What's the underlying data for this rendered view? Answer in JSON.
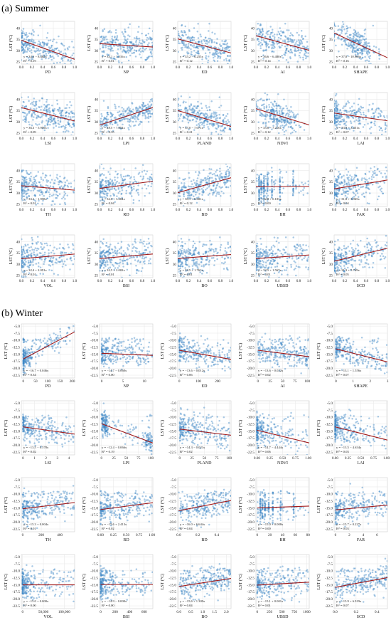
{
  "sections": [
    {
      "title": "(a) Summer",
      "ylabel": "LST (°C)",
      "yticks": [
        "25",
        "30",
        "35",
        "40"
      ],
      "ylim": [
        24,
        43
      ],
      "panels": [
        {
          "xlabel": "PD",
          "xticks": [
            "0.0",
            "0.2",
            "0.4",
            "0.6",
            "0.8",
            "1.0"
          ],
          "xlim": [
            0,
            1
          ],
          "eq": "y = 34.6 − 8.485x",
          "r2": "= 0.19",
          "slope": -8.485,
          "intercept": 34.6,
          "spread": 3.2,
          "dist": "left"
        },
        {
          "xlabel": "NP",
          "xticks": [
            "0.0",
            "0.2",
            "0.4",
            "0.6",
            "0.8",
            "1.0"
          ],
          "xlim": [
            0,
            1
          ],
          "eq": "y = 33.1 − 1.516x",
          "r2": "= 0.01",
          "slope": -1.516,
          "intercept": 33.1,
          "spread": 3.4,
          "dist": "uniform"
        },
        {
          "xlabel": "ED",
          "xticks": [
            "0.0",
            "0.2",
            "0.4",
            "0.6",
            "0.8",
            "1.0"
          ],
          "xlim": [
            0,
            1
          ],
          "eq": "y = 35.2 − 6.255x",
          "r2": "= 0.12",
          "slope": -6.255,
          "intercept": 35.2,
          "spread": 3.3,
          "dist": "uniform"
        },
        {
          "xlabel": "AI",
          "xticks": [
            "0.0",
            "0.2",
            "0.4",
            "0.6",
            "0.8",
            "1.0"
          ],
          "xlim": [
            0,
            1
          ],
          "eq": "y = 36.6 − 6.480x",
          "r2": "= 0.14",
          "slope": -6.48,
          "intercept": 36.6,
          "spread": 3.1,
          "dist": "uniform"
        },
        {
          "xlabel": "SHAPE",
          "xticks": [
            "0.0",
            "0.2",
            "0.4",
            "0.6",
            "0.8",
            "1.0"
          ],
          "xlim": [
            0,
            1
          ],
          "eq": "y = 37.8 − 10.966x",
          "r2": "= 0.16",
          "slope": -10.966,
          "intercept": 37.8,
          "spread": 3.3,
          "dist": "mid"
        },
        {
          "xlabel": "LSI",
          "xticks": [
            "0.0",
            "0.2",
            "0.4",
            "0.6",
            "0.8",
            "1.0"
          ],
          "xlim": [
            0,
            1
          ],
          "eq": "y = 36.3 − 5.959x",
          "r2": "= 0.09",
          "slope": -5.959,
          "intercept": 36.3,
          "spread": 3.3,
          "dist": "uniform"
        },
        {
          "xlabel": "LPI",
          "xticks": [
            "0.0",
            "0.2",
            "0.4",
            "0.6",
            "0.8",
            "1.0"
          ],
          "xlim": [
            0,
            1
          ],
          "eq": "y = 28.5 + 7.854x",
          "r2": "= 0.35",
          "slope": 7.854,
          "intercept": 28.5,
          "spread": 2.6,
          "dist": "uniform"
        },
        {
          "xlabel": "PLAND",
          "xticks": [
            "0.0",
            "0.2",
            "0.4",
            "0.6",
            "0.8",
            "1.0"
          ],
          "xlim": [
            0,
            1
          ],
          "eq": "y = 35.0 − 7.071x",
          "r2": "= 0.21",
          "slope": -7.071,
          "intercept": 35.0,
          "spread": 3.0,
          "dist": "uniform"
        },
        {
          "xlabel": "NDVI",
          "xticks": [
            "0.0",
            "0.2",
            "0.4",
            "0.6",
            "0.8",
            "1.0"
          ],
          "xlim": [
            0,
            1
          ],
          "eq": "y = 35.8 − 7.216x",
          "r2": "= 0.12",
          "slope": -7.216,
          "intercept": 35.8,
          "spread": 3.3,
          "dist": "mid"
        },
        {
          "xlabel": "LAI",
          "xticks": [
            "0.0",
            "0.2",
            "0.4",
            "0.6",
            "0.8",
            "1.0"
          ],
          "xlim": [
            0,
            1
          ],
          "eq": "y = 33.9 − 3.451x",
          "r2": "= 0.07",
          "slope": -3.451,
          "intercept": 33.9,
          "spread": 3.3,
          "dist": "left"
        },
        {
          "xlabel": "TH",
          "xticks": [
            "0.0",
            "0.2",
            "0.4",
            "0.6",
            "0.8",
            "1.0"
          ],
          "xlim": [
            0,
            1
          ],
          "eq": "y = 33.2 − 1.958x",
          "r2": "= 0.01",
          "slope": -1.958,
          "intercept": 33.2,
          "spread": 3.4,
          "dist": "left"
        },
        {
          "xlabel": "RD",
          "xticks": [
            "0.0",
            "0.2",
            "0.4",
            "0.6",
            "0.8",
            "1.0"
          ],
          "xlim": [
            0,
            1
          ],
          "eq": "y = 32.0 + 3.204x",
          "r2": "= 0.04",
          "slope": 3.204,
          "intercept": 32.0,
          "spread": 3.4,
          "dist": "left"
        },
        {
          "xlabel": "BD",
          "xticks": [
            "0.0",
            "0.2",
            "0.4",
            "0.6",
            "0.8",
            "1.0"
          ],
          "xlim": [
            0,
            1
          ],
          "eq": "y = 30.1 + 6.681x",
          "r2": "= 0.12",
          "slope": 6.681,
          "intercept": 30.1,
          "spread": 3.3,
          "dist": "uniform"
        },
        {
          "xlabel": "BH",
          "xticks": [
            "0.0",
            "0.2",
            "0.4",
            "0.6",
            "0.8",
            "1.0"
          ],
          "xlim": [
            0,
            1
          ],
          "eq": "y = 32.8 + 0.103x",
          "r2": "= 0.00",
          "slope": 0.103,
          "intercept": 32.8,
          "spread": 3.5,
          "dist": "stripes"
        },
        {
          "xlabel": "FAR",
          "xticks": [
            "0.0",
            "0.2",
            "0.4",
            "0.6",
            "0.8",
            "1.0"
          ],
          "xlim": [
            0,
            1
          ],
          "eq": "y = 31.8 + 3.965x",
          "r2": "= 0.04",
          "slope": 3.965,
          "intercept": 31.8,
          "spread": 3.4,
          "dist": "left"
        },
        {
          "xlabel": "VOL",
          "xticks": [
            "0.0",
            "0.2",
            "0.4",
            "0.6",
            "0.8",
            "1.0"
          ],
          "xlim": [
            0,
            1
          ],
          "eq": "y = 32.4 + 2.091x",
          "r2": "= 0.01",
          "slope": 2.091,
          "intercept": 32.4,
          "spread": 3.5,
          "dist": "left"
        },
        {
          "xlabel": "BSI",
          "xticks": [
            "0.0",
            "0.2",
            "0.4",
            "0.6",
            "0.8",
            "1.0"
          ],
          "xlim": [
            0,
            1
          ],
          "eq": "y = 32.5 + 2.002x",
          "r2": "= 0.01",
          "slope": 2.002,
          "intercept": 32.5,
          "spread": 3.5,
          "dist": "left"
        },
        {
          "xlabel": "BO",
          "xticks": [
            "0.0",
            "0.2",
            "0.4",
            "0.6",
            "0.8",
            "1.0"
          ],
          "xlim": [
            0,
            1
          ],
          "eq": "y = 32.5 + 1.761x",
          "r2": "= 0.01",
          "slope": 1.761,
          "intercept": 32.5,
          "spread": 3.5,
          "dist": "left"
        },
        {
          "xlabel": "UBSD",
          "xticks": [
            "0.0",
            "0.2",
            "0.4",
            "0.6",
            "0.8",
            "1.0"
          ],
          "xlim": [
            0,
            1
          ],
          "eq": "y = 32.5 + 1.567x",
          "r2": "= 0.01",
          "slope": 1.567,
          "intercept": 32.5,
          "spread": 3.5,
          "dist": "left"
        },
        {
          "xlabel": "SCD",
          "xticks": [
            "0.0",
            "0.2",
            "0.4",
            "0.6",
            "0.8",
            "1.0"
          ],
          "xlim": [
            0,
            1
          ],
          "eq": "y = 31.3 + 5.769x",
          "r2": "= 0.05",
          "slope": 5.769,
          "intercept": 31.3,
          "spread": 3.4,
          "dist": "left"
        }
      ]
    },
    {
      "title": "(b) Winter",
      "ylabel": "LST (°C)",
      "yticks": [
        "-5.0",
        "-7.5",
        "-10.0",
        "-12.5",
        "-15.0",
        "-17.5",
        "-20.0",
        "-22.5"
      ],
      "ylim": [
        -23.5,
        -4.2
      ],
      "panels": [
        {
          "xlabel": "PD",
          "xticks": [
            "0",
            "50",
            "100",
            "150",
            "200"
          ],
          "xlim": [
            -8,
            210
          ],
          "eq": "y = −16.7 + 0.046x",
          "r2": "= 0.34",
          "slope": 0.046,
          "intercept": -16.7,
          "spread": 2.0,
          "dist": "veryleft"
        },
        {
          "xlabel": "NP",
          "xticks": [
            "0",
            "5",
            "10"
          ],
          "xlim": [
            -0.5,
            12
          ],
          "eq": "y = −14.7 − 0.060x",
          "r2": "= 0.00",
          "slope": -0.06,
          "intercept": -14.7,
          "spread": 2.3,
          "dist": "left"
        },
        {
          "xlabel": "ED",
          "xticks": [
            "0",
            "100",
            "200"
          ],
          "xlim": [
            -8,
            270
          ],
          "eq": "y = −13.6 − 0.012x",
          "r2": "= 0.06",
          "slope": -0.012,
          "intercept": -13.6,
          "spread": 2.2,
          "dist": "left"
        },
        {
          "xlabel": "AI",
          "xticks": [
            "0",
            "25",
            "50",
            "75",
            "100"
          ],
          "xlim": [
            -4,
            104
          ],
          "eq": "y = −13.6 − 0.022x",
          "r2": "= 0.02",
          "slope": -0.022,
          "intercept": -13.6,
          "spread": 2.2,
          "dist": "uniform"
        },
        {
          "xlabel": "SHAPE",
          "xticks": [
            "0",
            "1",
            "2",
            "3"
          ],
          "xlim": [
            -0.1,
            3.0
          ],
          "eq": "y = −13.1 − 1.556x",
          "r2": "= 0.07",
          "slope": -1.556,
          "intercept": -13.1,
          "spread": 2.2,
          "dist": "left"
        },
        {
          "xlabel": "LSI",
          "xticks": [
            "0",
            "1",
            "2",
            "3",
            "4"
          ],
          "xlim": [
            -0.15,
            4.5
          ],
          "eq": "y = −13.5 − 0.578x",
          "r2": "= 0.02",
          "slope": -0.578,
          "intercept": -13.5,
          "spread": 2.2,
          "dist": "left"
        },
        {
          "xlabel": "LPI",
          "xticks": [
            "0",
            "25",
            "50",
            "75",
            "100"
          ],
          "xlim": [
            -4,
            104
          ],
          "eq": "y = −12.4 − 0.066x",
          "r2": "= 0.19",
          "slope": -0.066,
          "intercept": -12.4,
          "spread": 2.0,
          "dist": "ends"
        },
        {
          "xlabel": "PLAND",
          "xticks": [
            "0",
            "25",
            "50",
            "75",
            "100"
          ],
          "xlim": [
            -4,
            104
          ],
          "eq": "y = −14.3 − 0.021x",
          "r2": "= 0.02",
          "slope": -0.021,
          "intercept": -14.3,
          "spread": 2.3,
          "dist": "left"
        },
        {
          "xlabel": "NDVI",
          "xticks": [
            "0.00",
            "0.25",
            "0.50",
            "0.75",
            "1.00"
          ],
          "xlim": [
            -0.02,
            1.02
          ],
          "eq": "y = −14.7 − 4.444x",
          "r2": "= 0.06",
          "slope": -4.444,
          "intercept": -14.7,
          "spread": 2.4,
          "dist": "veryleft"
        },
        {
          "xlabel": "LAI",
          "xticks": [
            "0.00",
            "0.25",
            "0.50",
            "0.75",
            "1.00"
          ],
          "xlim": [
            -0.02,
            1.02
          ],
          "eq": "y = −13.5 − 4.634x",
          "r2": "= 0.03",
          "slope": -4.634,
          "intercept": -13.5,
          "spread": 2.3,
          "dist": "veryleft"
        },
        {
          "xlabel": "TH",
          "xticks": [
            "0",
            "200",
            "400"
          ],
          "xlim": [
            -15,
            560
          ],
          "eq": "y = −15.3 + 0.004x",
          "r2": "= 0.01",
          "slope": 0.004,
          "intercept": -15.3,
          "spread": 2.3,
          "dist": "left"
        },
        {
          "xlabel": "RD",
          "xticks": [
            "0.00",
            "0.25",
            "0.50",
            "0.75",
            "1.00"
          ],
          "xlim": [
            -0.02,
            1.02
          ],
          "eq": "y = −15.6 + 2.413x",
          "r2": "= 0.02",
          "slope": 2.413,
          "intercept": -15.6,
          "spread": 2.3,
          "dist": "left"
        },
        {
          "xlabel": "BD",
          "xticks": [
            "0.0",
            "0.2",
            "0.4"
          ],
          "xlim": [
            -0.01,
            0.55
          ],
          "eq": "y = −16.0 + 6.644x",
          "r2": "= 0.04",
          "slope": 6.644,
          "intercept": -16.0,
          "spread": 2.3,
          "dist": "uniform"
        },
        {
          "xlabel": "BH",
          "xticks": [
            "0",
            "20",
            "40",
            "60",
            "80"
          ],
          "xlim": [
            -2,
            82
          ],
          "eq": "y = −15.0 + 0.008x",
          "r2": "= 0.00",
          "slope": 0.008,
          "intercept": -15.0,
          "spread": 2.4,
          "dist": "stripes"
        },
        {
          "xlabel": "FAR",
          "xticks": [
            "0",
            "2",
            "4",
            "6"
          ],
          "xlim": [
            -0.2,
            7.5
          ],
          "eq": "y = −15.7 + 0.227x",
          "r2": "= 0.03",
          "slope": 0.227,
          "intercept": -15.7,
          "spread": 2.3,
          "dist": "left"
        },
        {
          "xlabel": "VOL",
          "xticks": [
            "0",
            "50,000",
            "100,000"
          ],
          "xlim": [
            -3000,
            125000
          ],
          "eq": "y = −15.0 + 0.000x",
          "r2": "= 0.00",
          "slope": 0.0,
          "intercept": -15.0,
          "spread": 2.4,
          "dist": "veryleft"
        },
        {
          "xlabel": "BSI",
          "xticks": [
            "0",
            "200",
            "400",
            "600"
          ],
          "xlim": [
            -15,
            720
          ],
          "eq": "y = −14.9 − 0.000x",
          "r2": "= 0.00",
          "slope": 0.0,
          "intercept": -14.9,
          "spread": 2.4,
          "dist": "veryleft"
        },
        {
          "xlabel": "BO",
          "xticks": [
            "0.0",
            "0.5",
            "1.0",
            "1.5",
            "2.0"
          ],
          "xlim": [
            -0.05,
            2.2
          ],
          "eq": "y = −15.6 + 1.309x",
          "r2": "= 0.04",
          "slope": 1.309,
          "intercept": -15.6,
          "spread": 2.3,
          "dist": "uniform"
        },
        {
          "xlabel": "UBSD",
          "xticks": [
            "0",
            "250",
            "500",
            "750",
            "1000"
          ],
          "xlim": [
            -25,
            1050
          ],
          "eq": "y = −15.1 + 0.001x",
          "r2": "= 0.01",
          "slope": 0.001,
          "intercept": -15.1,
          "spread": 2.4,
          "dist": "left"
        },
        {
          "xlabel": "SCD",
          "xticks": [
            "0.0",
            "0.2",
            "0.4"
          ],
          "xlim": [
            -0.01,
            0.5
          ],
          "eq": "y = −15.9 + 6.919x",
          "r2": "= 0.07",
          "slope": 6.919,
          "intercept": -15.9,
          "spread": 2.3,
          "dist": "uniform"
        }
      ]
    }
  ],
  "chart_data": {
    "type": "scatter",
    "panels_per_section": 20,
    "grid": true,
    "point_color": "#3f87c6",
    "line_color": "#a11a1a"
  }
}
